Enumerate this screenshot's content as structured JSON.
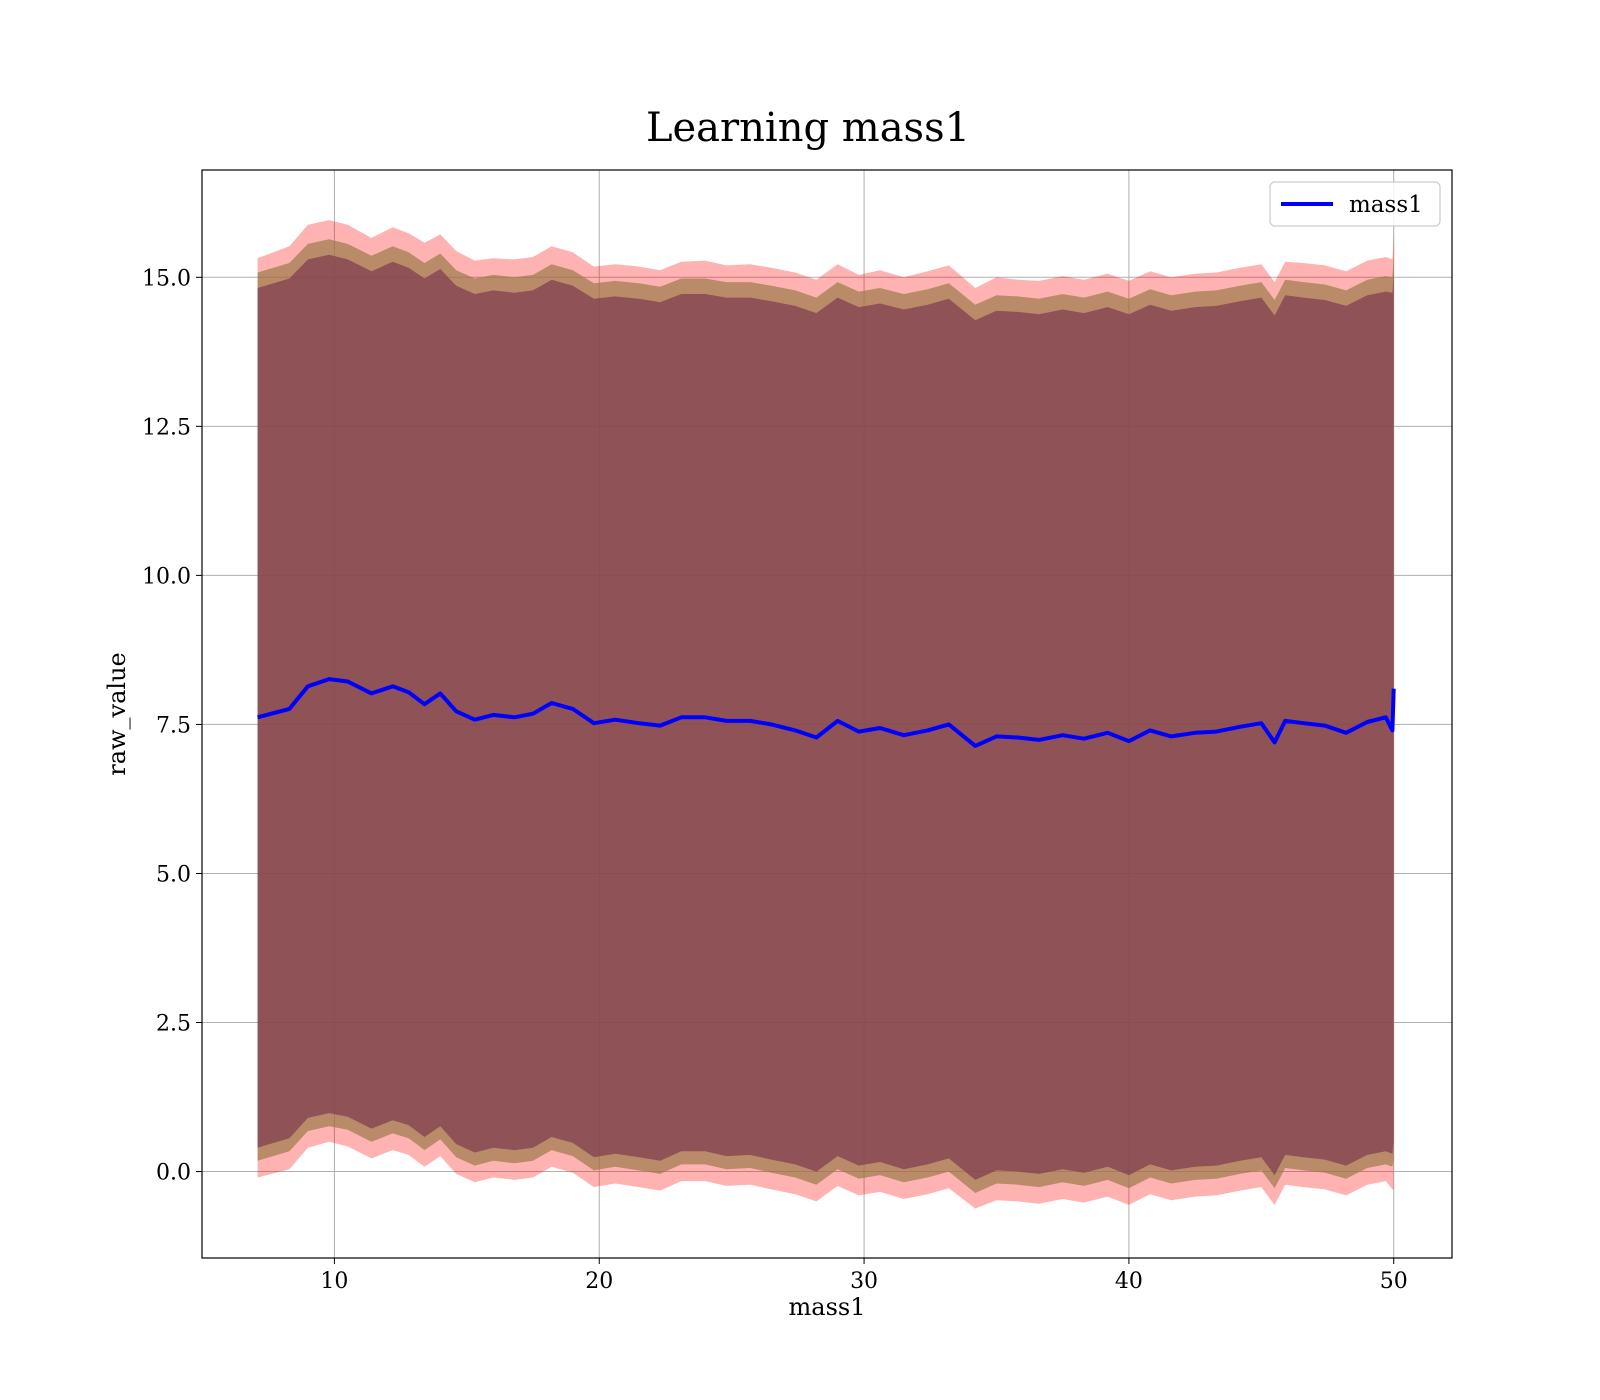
{
  "chart_data": {
    "type": "line",
    "title": "Learning mass1",
    "xlabel": "mass1",
    "ylabel": "raw_value",
    "xlim": [
      5,
      52.2
    ],
    "ylim": [
      -1.45,
      16.8
    ],
    "xticks": [
      10,
      20,
      30,
      40,
      50
    ],
    "xtick_labels": [
      "10",
      "20",
      "30",
      "40",
      "50"
    ],
    "yticks": [
      0.0,
      2.5,
      5.0,
      7.5,
      10.0,
      12.5,
      15.0
    ],
    "ytick_labels": [
      "0.0",
      "2.5",
      "5.0",
      "7.5",
      "10.0",
      "12.5",
      "15.0"
    ],
    "grid": true,
    "legend_position": "top-right",
    "colors": {
      "line": "#0000ff",
      "band_outer": "#ff0000",
      "band_mid": "#9c7a4a",
      "band_inner": "#7e3a4e"
    },
    "series": [
      {
        "name": "mass1",
        "x": [
          7.1,
          8.3,
          9.0,
          9.8,
          10.5,
          11.4,
          12.2,
          12.8,
          13.4,
          14.0,
          14.6,
          15.3,
          16.0,
          16.8,
          17.5,
          18.2,
          19.0,
          19.8,
          20.6,
          21.5,
          22.3,
          23.1,
          24.0,
          24.8,
          25.7,
          26.5,
          27.4,
          28.2,
          29.0,
          29.8,
          30.6,
          31.5,
          32.4,
          33.2,
          34.2,
          35.0,
          35.8,
          36.6,
          37.5,
          38.3,
          39.2,
          40.0,
          40.8,
          41.6,
          42.5,
          43.3,
          44.2,
          45.0,
          45.5,
          45.9,
          46.6,
          47.4,
          48.2,
          49.0,
          49.7,
          49.95,
          50.0
        ],
        "y": [
          7.62,
          7.76,
          8.14,
          8.26,
          8.22,
          8.02,
          8.14,
          8.04,
          7.84,
          8.02,
          7.72,
          7.58,
          7.66,
          7.62,
          7.68,
          7.86,
          7.76,
          7.52,
          7.58,
          7.52,
          7.48,
          7.62,
          7.62,
          7.56,
          7.56,
          7.5,
          7.4,
          7.28,
          7.56,
          7.38,
          7.44,
          7.32,
          7.4,
          7.5,
          7.14,
          7.3,
          7.28,
          7.24,
          7.32,
          7.26,
          7.36,
          7.22,
          7.4,
          7.3,
          7.36,
          7.38,
          7.46,
          7.52,
          7.2,
          7.56,
          7.52,
          7.48,
          7.36,
          7.54,
          7.62,
          7.4,
          8.1
        ],
        "upper_outer": [
          15.32,
          15.52,
          15.88,
          15.96,
          15.88,
          15.66,
          15.84,
          15.74,
          15.58,
          15.72,
          15.44,
          15.28,
          15.32,
          15.3,
          15.34,
          15.52,
          15.42,
          15.18,
          15.22,
          15.18,
          15.12,
          15.26,
          15.28,
          15.2,
          15.22,
          15.16,
          15.08,
          14.96,
          15.22,
          15.04,
          15.12,
          15.0,
          15.1,
          15.2,
          14.82,
          15.0,
          14.96,
          14.94,
          15.02,
          14.96,
          15.06,
          14.94,
          15.1,
          15.0,
          15.06,
          15.08,
          15.16,
          15.22,
          14.92,
          15.26,
          15.24,
          15.2,
          15.1,
          15.28,
          15.34,
          15.3,
          15.8
        ],
        "upper_mid": [
          15.08,
          15.24,
          15.56,
          15.64,
          15.56,
          15.36,
          15.52,
          15.42,
          15.24,
          15.4,
          15.12,
          14.98,
          15.04,
          15.0,
          15.04,
          15.22,
          15.12,
          14.9,
          14.94,
          14.9,
          14.84,
          14.98,
          14.98,
          14.92,
          14.92,
          14.86,
          14.78,
          14.66,
          14.92,
          14.76,
          14.82,
          14.72,
          14.8,
          14.9,
          14.54,
          14.7,
          14.68,
          14.64,
          14.72,
          14.66,
          14.76,
          14.64,
          14.8,
          14.7,
          14.76,
          14.78,
          14.86,
          14.92,
          14.62,
          14.96,
          14.92,
          14.88,
          14.78,
          14.96,
          15.02,
          15.0,
          15.4
        ],
        "upper_inner": [
          14.82,
          14.98,
          15.3,
          15.38,
          15.3,
          15.1,
          15.26,
          15.16,
          14.98,
          15.14,
          14.86,
          14.72,
          14.78,
          14.74,
          14.78,
          14.96,
          14.86,
          14.64,
          14.68,
          14.64,
          14.58,
          14.72,
          14.72,
          14.66,
          14.66,
          14.6,
          14.52,
          14.4,
          14.66,
          14.5,
          14.56,
          14.46,
          14.54,
          14.64,
          14.28,
          14.44,
          14.42,
          14.38,
          14.46,
          14.4,
          14.5,
          14.38,
          14.54,
          14.44,
          14.5,
          14.52,
          14.6,
          14.66,
          14.36,
          14.7,
          14.66,
          14.62,
          14.52,
          14.7,
          14.76,
          14.74,
          15.1
        ],
        "lower_inner": [
          0.4,
          0.56,
          0.9,
          0.98,
          0.92,
          0.72,
          0.86,
          0.78,
          0.58,
          0.76,
          0.46,
          0.32,
          0.4,
          0.36,
          0.4,
          0.58,
          0.48,
          0.24,
          0.3,
          0.24,
          0.18,
          0.34,
          0.34,
          0.26,
          0.28,
          0.2,
          0.12,
          0.0,
          0.26,
          0.1,
          0.16,
          0.04,
          0.12,
          0.22,
          -0.14,
          0.02,
          0.0,
          -0.04,
          0.04,
          -0.02,
          0.08,
          -0.06,
          0.12,
          0.02,
          0.08,
          0.1,
          0.18,
          0.24,
          -0.06,
          0.28,
          0.24,
          0.2,
          0.1,
          0.28,
          0.34,
          0.3,
          0.5
        ],
        "lower_mid": [
          0.18,
          0.34,
          0.68,
          0.76,
          0.7,
          0.5,
          0.64,
          0.56,
          0.36,
          0.54,
          0.24,
          0.1,
          0.18,
          0.14,
          0.18,
          0.36,
          0.26,
          0.02,
          0.08,
          0.02,
          -0.04,
          0.12,
          0.12,
          0.04,
          0.06,
          -0.02,
          -0.1,
          -0.22,
          0.04,
          -0.12,
          -0.06,
          -0.18,
          -0.1,
          0.0,
          -0.36,
          -0.2,
          -0.22,
          -0.26,
          -0.18,
          -0.24,
          -0.14,
          -0.28,
          -0.1,
          -0.2,
          -0.14,
          -0.12,
          -0.04,
          0.02,
          -0.28,
          0.06,
          0.02,
          -0.02,
          -0.12,
          0.06,
          0.12,
          0.08,
          0.2
        ],
        "lower_outer": [
          -0.1,
          0.04,
          0.4,
          0.5,
          0.42,
          0.22,
          0.36,
          0.28,
          0.08,
          0.26,
          -0.04,
          -0.18,
          -0.1,
          -0.14,
          -0.1,
          0.08,
          -0.02,
          -0.26,
          -0.2,
          -0.26,
          -0.32,
          -0.16,
          -0.16,
          -0.24,
          -0.22,
          -0.3,
          -0.38,
          -0.5,
          -0.24,
          -0.4,
          -0.34,
          -0.46,
          -0.38,
          -0.28,
          -0.62,
          -0.48,
          -0.5,
          -0.54,
          -0.46,
          -0.52,
          -0.42,
          -0.56,
          -0.38,
          -0.48,
          -0.42,
          -0.4,
          -0.32,
          -0.26,
          -0.56,
          -0.22,
          -0.26,
          -0.3,
          -0.4,
          -0.22,
          -0.16,
          -0.3,
          -0.3
        ]
      }
    ]
  }
}
